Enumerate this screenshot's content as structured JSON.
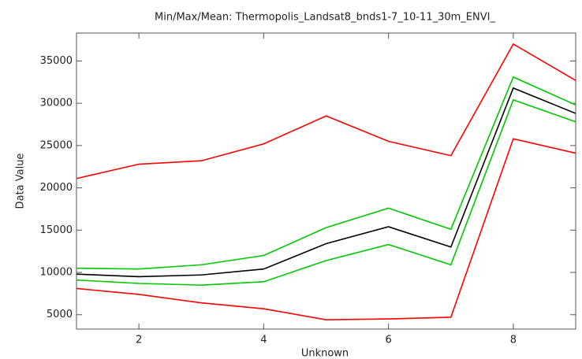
{
  "chart_data": {
    "type": "line",
    "title": "Min/Max/Mean: Thermopolis_Landsat8_bnds1-7_10-11_30m_ENVI_",
    "x_label": "Unknown",
    "y_label": "Data Value",
    "x": [
      1,
      2,
      3,
      4,
      5,
      6,
      7,
      8,
      9
    ],
    "series": [
      {
        "color": "#ff0000",
        "values": [
          21100,
          22800,
          23200,
          25200,
          28500,
          25500,
          23800,
          37000,
          32700
        ]
      },
      {
        "color": "#00c800",
        "values": [
          10500,
          10400,
          10900,
          12000,
          15300,
          17600,
          15100,
          33100,
          29800
        ]
      },
      {
        "color": "#000000",
        "values": [
          9800,
          9500,
          9700,
          10400,
          13400,
          15400,
          13000,
          31800,
          28800
        ]
      },
      {
        "color": "#00c800",
        "values": [
          9100,
          8700,
          8500,
          8900,
          11400,
          13300,
          10900,
          30400,
          27800
        ]
      },
      {
        "color": "#ff0000",
        "values": [
          8100,
          7400,
          6400,
          5700,
          4400,
          4500,
          4700,
          25800,
          24100
        ]
      }
    ],
    "xlim": [
      1,
      9
    ],
    "xticks": [
      2,
      4,
      6,
      8
    ],
    "ylim": [
      3300,
      38300
    ],
    "yticks": [
      5000,
      10000,
      15000,
      20000,
      25000,
      30000,
      35000
    ]
  }
}
